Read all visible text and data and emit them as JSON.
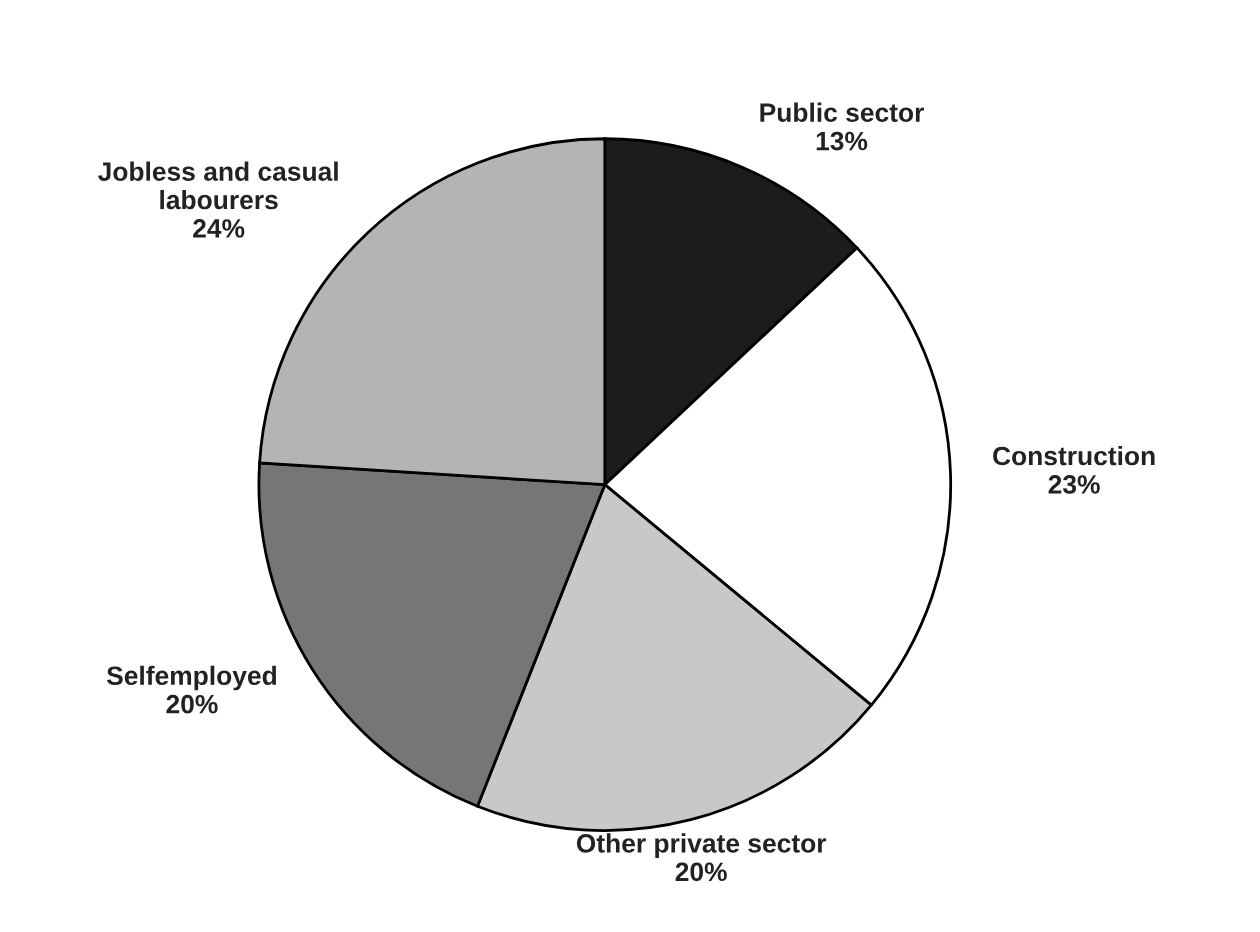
{
  "chart_data": {
    "type": "pie",
    "categories": [
      "Public sector",
      "Construction",
      "Other private sector",
      "Selfemployed",
      "Jobless and casual\nlabourers"
    ],
    "values": [
      13,
      23,
      20,
      20,
      24
    ],
    "value_labels": [
      "13%",
      "23%",
      "20%",
      "20%",
      "24%"
    ],
    "colors": [
      "#1c1c1c",
      "#ffffff",
      "#c8c8c8",
      "#767676",
      "#b4b4b4"
    ],
    "legend": false
  }
}
